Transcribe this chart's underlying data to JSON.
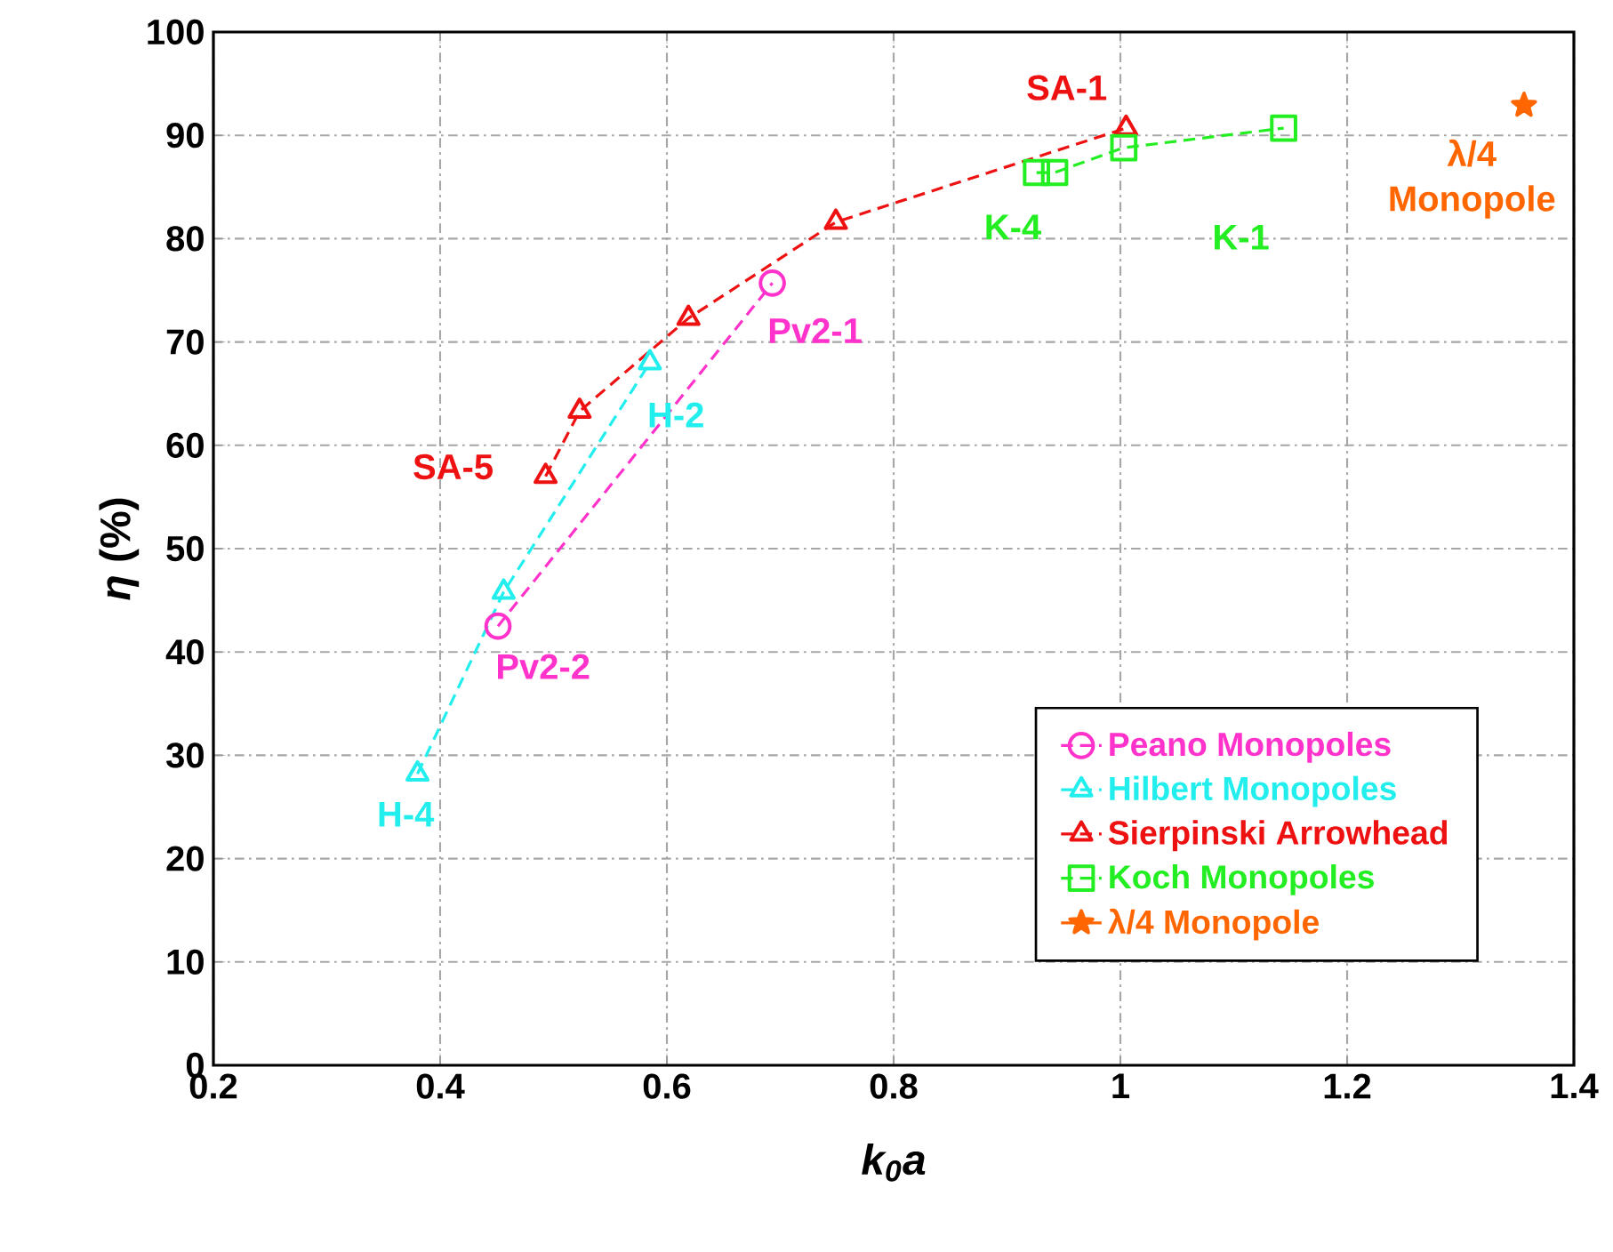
{
  "chart_data": {
    "type": "line",
    "xlabel": "k$_{0}$a",
    "ylabel": "*η* (%)",
    "series": [
      {
        "name": "Peano Monopoles",
        "color": "#ff33cc",
        "marker": "circle",
        "x": [
          0.451,
          0.693
        ],
        "values": [
          42.5,
          75.7
        ]
      },
      {
        "name": "Hilbert Monopoles",
        "color": "#22eeee",
        "marker": "triangle",
        "x": [
          0.38,
          0.456,
          0.585
        ],
        "values": [
          28.2,
          45.8,
          68.0
        ]
      },
      {
        "name": "Sierpinski Arrowhead",
        "color": "#ee1111",
        "marker": "triangle",
        "x": [
          0.493,
          0.523,
          0.619,
          0.749,
          1.005
        ],
        "values": [
          57.0,
          63.3,
          72.3,
          81.6,
          90.7
        ]
      },
      {
        "name": "Koch Monopoles",
        "color": "#22ee22",
        "marker": "square",
        "x": [
          0.926,
          0.942,
          1.003,
          1.144
        ],
        "values": [
          86.4,
          86.4,
          88.8,
          90.7
        ]
      },
      {
        "name": "λ/4 Monopole",
        "color": "#ff6600",
        "marker": "star",
        "line_style": "solid",
        "x": [
          1.356
        ],
        "values": [
          92.9
        ]
      }
    ],
    "xlim": [
      0.2,
      1.4
    ],
    "ylim": [
      0,
      100
    ],
    "xticks": [
      0.2,
      0.4,
      0.6,
      0.8,
      1,
      1.2,
      1.4
    ],
    "yticks": [
      0,
      10,
      20,
      30,
      40,
      50,
      60,
      70,
      80,
      90,
      100
    ],
    "grid": true,
    "legend": "bottom right",
    "line_style": "dashed",
    "annotations": [
      {
        "text": "SA-1",
        "x": 1.005,
        "y": 90.7
      },
      {
        "text": "K-1",
        "x": 1.144,
        "y": 90.7
      },
      {
        "text": "K-4",
        "x": 0.926,
        "y": 86.4
      },
      {
        "text": "Pv2-1",
        "x": 0.693,
        "y": 75.7
      },
      {
        "text": "H-2",
        "x": 0.585,
        "y": 68.0
      },
      {
        "text": "SA-5",
        "x": 0.493,
        "y": 57.0
      },
      {
        "text": "Pv2-2",
        "x": 0.451,
        "y": 42.5
      },
      {
        "text": "H-4",
        "x": 0.38,
        "y": 28.2
      },
      {
        "text": "λ/4 Monopole",
        "x": 1.356,
        "y": 92.9
      }
    ]
  }
}
